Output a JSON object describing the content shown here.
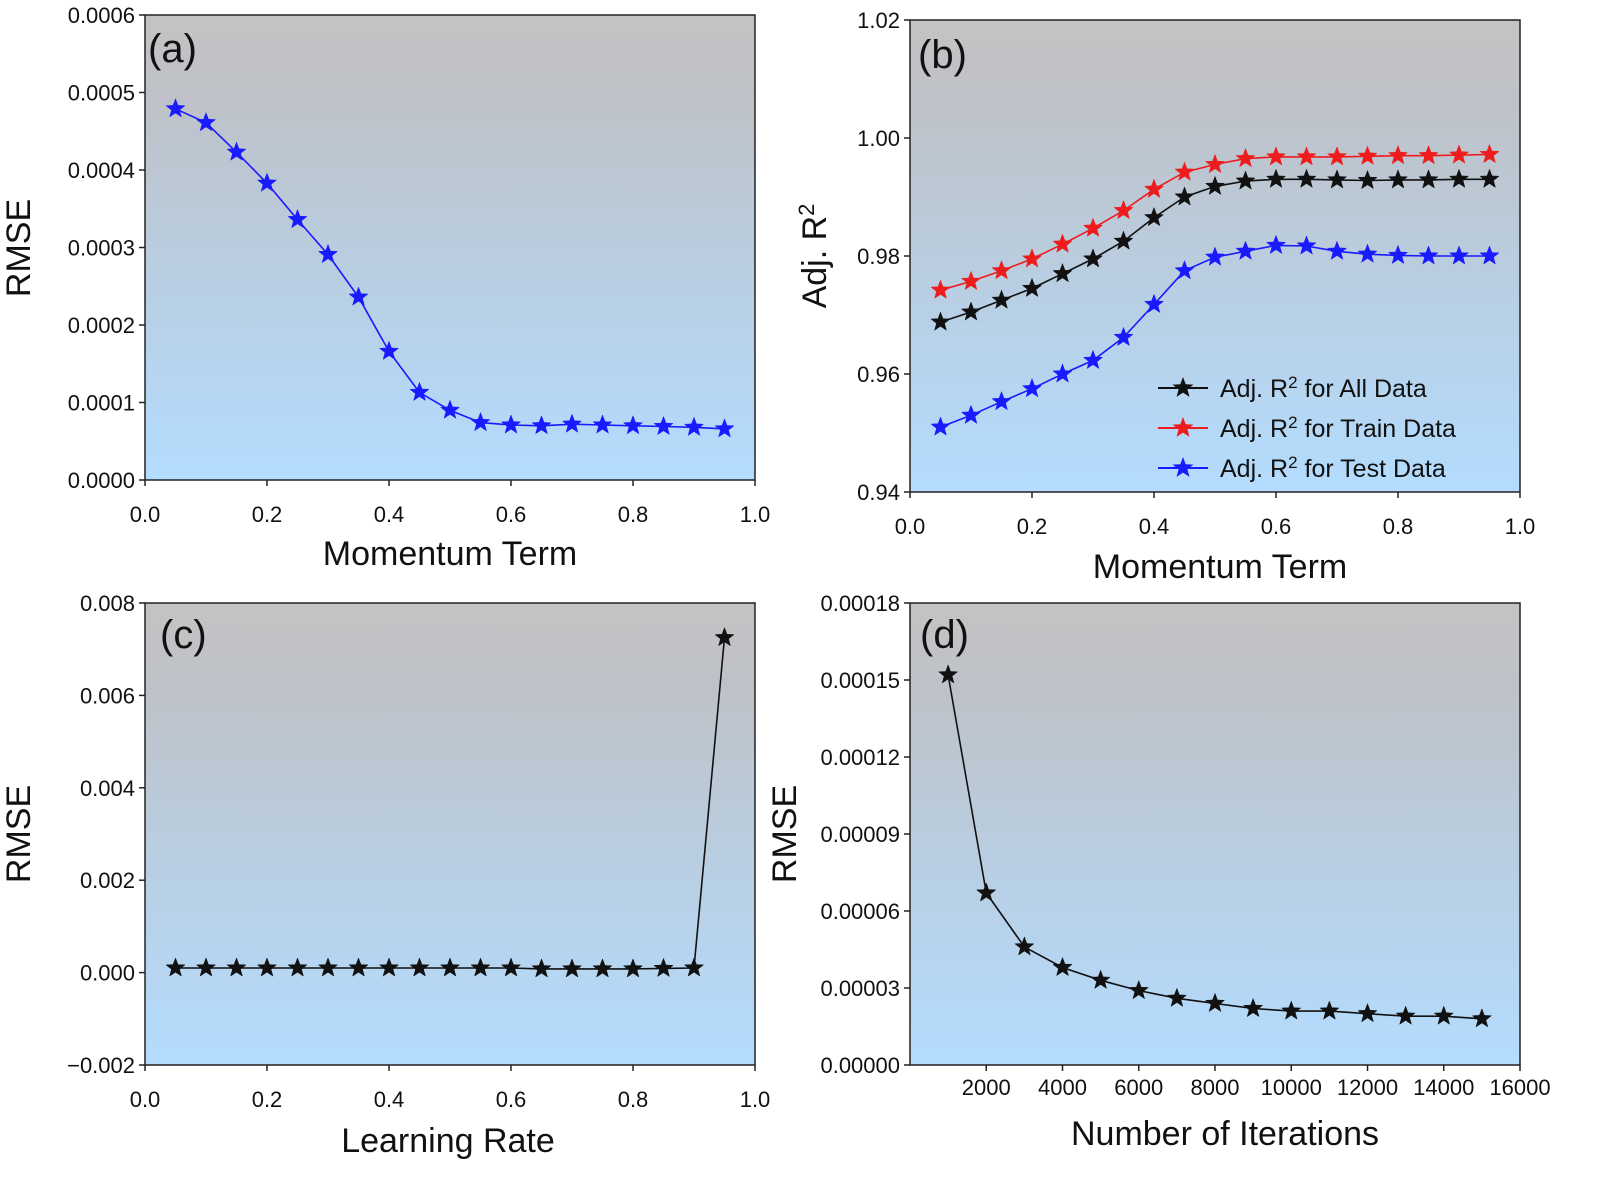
{
  "chart_data": [
    {
      "id": "a",
      "type": "line",
      "panel_label": "(a)",
      "xlabel": "Momentum Term",
      "ylabel": "RMSE",
      "xlim": [
        0,
        1
      ],
      "ylim": [
        0,
        0.0006
      ],
      "xticks": [
        "0.0",
        "0.2",
        "0.4",
        "0.6",
        "0.8",
        "1.0"
      ],
      "yticks": [
        "0.0000",
        "0.0001",
        "0.0002",
        "0.0003",
        "0.0004",
        "0.0005",
        "0.0006"
      ],
      "series": [
        {
          "name": "RMSE",
          "color": "#1a1aff",
          "x": [
            0.05,
            0.1,
            0.15,
            0.2,
            0.25,
            0.3,
            0.35,
            0.4,
            0.45,
            0.5,
            0.55,
            0.6,
            0.65,
            0.7,
            0.75,
            0.8,
            0.85,
            0.9,
            0.95
          ],
          "y": [
            0.000479,
            0.000461,
            0.000423,
            0.000383,
            0.000336,
            0.000291,
            0.000236,
            0.000166,
            0.000113,
            9e-05,
            7.4e-05,
            7.1e-05,
            7e-05,
            7.2e-05,
            7.1e-05,
            7e-05,
            6.9e-05,
            6.8e-05,
            6.6e-05
          ]
        }
      ]
    },
    {
      "id": "b",
      "type": "line",
      "panel_label": "(b)",
      "xlabel": "Momentum Term",
      "ylabel_main": "Adj. R",
      "ylabel_sup": "2",
      "xlim": [
        0,
        1
      ],
      "ylim": [
        0.94,
        1.02
      ],
      "xticks": [
        "0.0",
        "0.2",
        "0.4",
        "0.6",
        "0.8",
        "1.0"
      ],
      "yticks": [
        "0.94",
        "0.96",
        "0.98",
        "1.00",
        "1.02"
      ],
      "legend_position": "bottom-right",
      "series": [
        {
          "name_pre": "Adj. R",
          "name_sup": "2",
          "name_post": " for All Data",
          "color": "#111111",
          "x": [
            0.05,
            0.1,
            0.15,
            0.2,
            0.25,
            0.3,
            0.35,
            0.4,
            0.45,
            0.5,
            0.55,
            0.6,
            0.65,
            0.7,
            0.75,
            0.8,
            0.85,
            0.9,
            0.95
          ],
          "y": [
            0.9688,
            0.9705,
            0.9725,
            0.9745,
            0.977,
            0.9795,
            0.9825,
            0.9865,
            0.99,
            0.9918,
            0.9927,
            0.993,
            0.993,
            0.9929,
            0.9928,
            0.9929,
            0.9929,
            0.993,
            0.993
          ]
        },
        {
          "name_pre": "Adj. R",
          "name_sup": "2",
          "name_post": " for Train Data",
          "color": "#ee1c1c",
          "x": [
            0.05,
            0.1,
            0.15,
            0.2,
            0.25,
            0.3,
            0.35,
            0.4,
            0.45,
            0.5,
            0.55,
            0.6,
            0.65,
            0.7,
            0.75,
            0.8,
            0.85,
            0.9,
            0.95
          ],
          "y": [
            0.9742,
            0.9757,
            0.9775,
            0.9795,
            0.982,
            0.9847,
            0.9877,
            0.9913,
            0.9942,
            0.9955,
            0.9965,
            0.9968,
            0.9968,
            0.9968,
            0.9969,
            0.997,
            0.997,
            0.9971,
            0.9972
          ]
        },
        {
          "name_pre": "Adj. R",
          "name_sup": "2",
          "name_post": " for Test Data",
          "color": "#1a1aff",
          "x": [
            0.05,
            0.1,
            0.15,
            0.2,
            0.25,
            0.3,
            0.35,
            0.4,
            0.45,
            0.5,
            0.55,
            0.6,
            0.65,
            0.7,
            0.75,
            0.8,
            0.85,
            0.9,
            0.95
          ],
          "y": [
            0.951,
            0.953,
            0.9553,
            0.9575,
            0.96,
            0.9623,
            0.9662,
            0.9718,
            0.9775,
            0.9798,
            0.9808,
            0.9818,
            0.9817,
            0.9808,
            0.9803,
            0.9801,
            0.98,
            0.98,
            0.98
          ]
        }
      ]
    },
    {
      "id": "c",
      "type": "line",
      "panel_label": "(c)",
      "xlabel": "Learning Rate",
      "ylabel": "RMSE",
      "xlim": [
        0,
        1
      ],
      "ylim": [
        -0.002,
        0.008
      ],
      "xticks": [
        "0.0",
        "0.2",
        "0.4",
        "0.6",
        "0.8",
        "1.0"
      ],
      "yticks": [
        "−0.002",
        "0.000",
        "0.002",
        "0.004",
        "0.006",
        "0.008"
      ],
      "series": [
        {
          "name": "RMSE",
          "color": "#111111",
          "x": [
            0.05,
            0.1,
            0.15,
            0.2,
            0.25,
            0.3,
            0.35,
            0.4,
            0.45,
            0.5,
            0.55,
            0.6,
            0.65,
            0.7,
            0.75,
            0.8,
            0.85,
            0.9,
            0.95
          ],
          "y": [
            0.0001,
            0.0001,
            0.0001,
            0.0001,
            0.0001,
            0.0001,
            0.0001,
            0.0001,
            0.0001,
            0.0001,
            0.0001,
            0.0001,
            8e-05,
            8e-05,
            8e-05,
            8e-05,
            9e-05,
            0.0001,
            0.00725
          ]
        }
      ]
    },
    {
      "id": "d",
      "type": "line",
      "panel_label": "(d)",
      "xlabel": "Number of Iterations",
      "ylabel": "RMSE",
      "xlim": [
        0,
        16000
      ],
      "ylim": [
        0,
        0.00018
      ],
      "xticks": [
        "2000",
        "4000",
        "6000",
        "8000",
        "10000",
        "12000",
        "14000",
        "16000"
      ],
      "xtick_values": [
        2000,
        4000,
        6000,
        8000,
        10000,
        12000,
        14000,
        16000
      ],
      "yticks": [
        "0.00000",
        "0.00003",
        "0.00006",
        "0.00009",
        "0.00012",
        "0.00015",
        "0.00018"
      ],
      "series": [
        {
          "name": "RMSE",
          "color": "#111111",
          "x": [
            1000,
            2000,
            3000,
            4000,
            5000,
            6000,
            7000,
            8000,
            9000,
            10000,
            11000,
            12000,
            13000,
            14000,
            15000
          ],
          "y": [
            0.000152,
            6.7e-05,
            4.6e-05,
            3.8e-05,
            3.3e-05,
            2.9e-05,
            2.6e-05,
            2.4e-05,
            2.2e-05,
            2.1e-05,
            2.1e-05,
            2e-05,
            1.9e-05,
            1.9e-05,
            1.8e-05
          ]
        }
      ]
    }
  ]
}
